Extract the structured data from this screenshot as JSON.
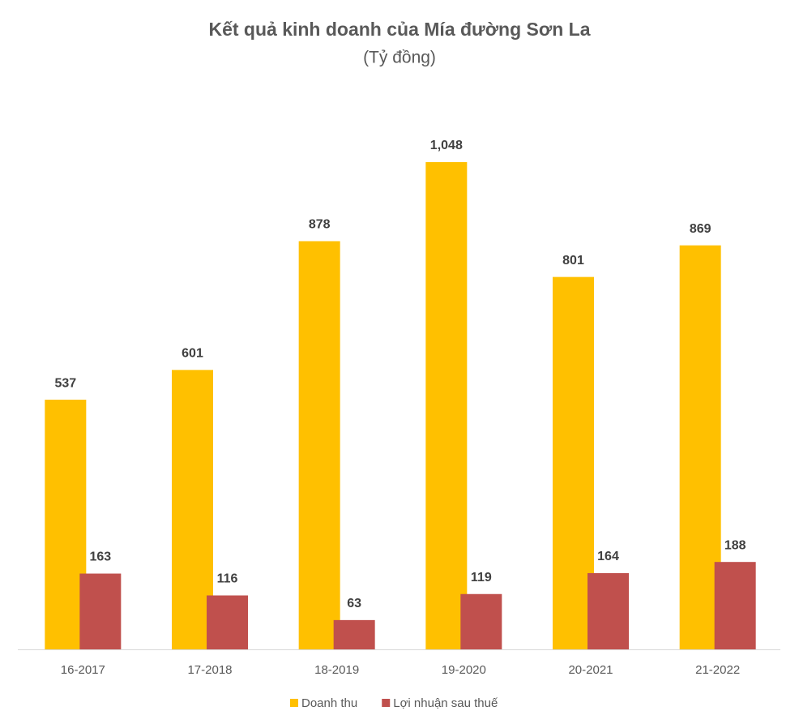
{
  "chart_data": {
    "type": "bar",
    "title": "Kết quả kinh doanh của Mía đường Sơn La",
    "subtitle": "(Tỷ đồng)",
    "categories": [
      "16-2017",
      "17-2018",
      "18-2019",
      "19-2020",
      "20-2021",
      "21-2022"
    ],
    "series": [
      {
        "name": "Doanh thu",
        "color": "#FFC000",
        "values": [
          537,
          601,
          878,
          1048,
          801,
          869
        ],
        "value_labels": [
          "537",
          "601",
          "878",
          "1,048",
          "801",
          "869"
        ]
      },
      {
        "name": "Lợi nhuận sau thuế",
        "color": "#C0504D",
        "values": [
          163,
          116,
          63,
          119,
          164,
          188
        ]
      }
    ]
  }
}
